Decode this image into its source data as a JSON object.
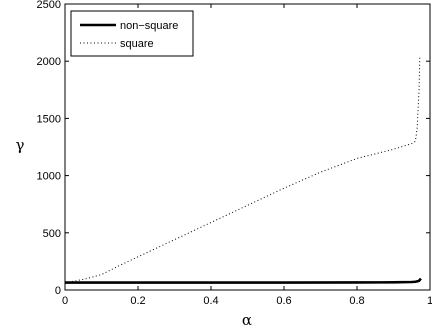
{
  "chart_data": {
    "type": "line",
    "title": "",
    "xlabel": "α",
    "ylabel": "γ",
    "xlim": [
      0,
      1
    ],
    "ylim": [
      0,
      2500
    ],
    "xticks": [
      "0",
      "0.2",
      "0.4",
      "0.6",
      "0.8",
      "1"
    ],
    "yticks": [
      "0",
      "500",
      "1000",
      "1500",
      "2000",
      "2500"
    ],
    "grid": false,
    "legend_position": "top-left",
    "series": [
      {
        "name": "non−square",
        "style": "solid",
        "color": "#000000",
        "x": [
          0,
          0.2,
          0.4,
          0.6,
          0.8,
          0.9,
          0.95,
          0.96,
          0.97,
          0.975
        ],
        "y": [
          65,
          65,
          65,
          65,
          66,
          67,
          70,
          72,
          80,
          100
        ]
      },
      {
        "name": "square",
        "style": "dotted",
        "color": "#000000",
        "x": [
          0,
          0.03,
          0.06,
          0.1,
          0.15,
          0.2,
          0.3,
          0.4,
          0.5,
          0.6,
          0.7,
          0.8,
          0.9,
          0.95,
          0.96,
          0.965,
          0.97,
          0.972
        ],
        "y": [
          65,
          80,
          100,
          135,
          215,
          290,
          440,
          590,
          740,
          890,
          1030,
          1150,
          1230,
          1280,
          1300,
          1420,
          1750,
          2030
        ]
      }
    ]
  }
}
